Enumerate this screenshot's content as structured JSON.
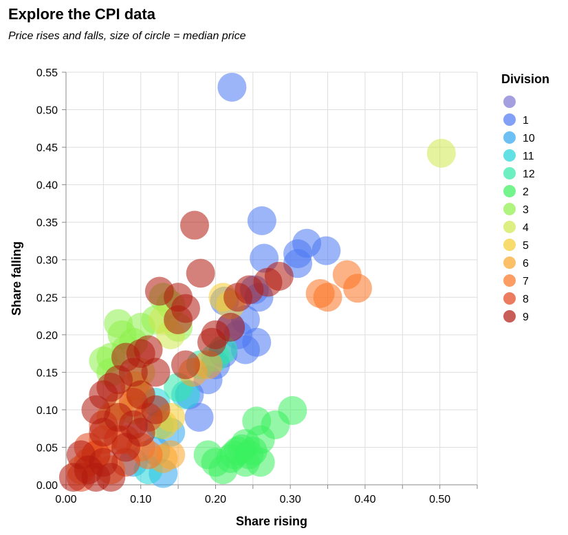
{
  "chart_data": {
    "type": "scatter",
    "title": "Explore the CPI data",
    "subtitle": "Price rises and falls, size of circle = median price",
    "xlabel": "Share rising",
    "ylabel": "Share falling",
    "xlim": [
      0,
      0.55
    ],
    "ylim": [
      0,
      0.55
    ],
    "xticks": [
      "0.00",
      "0.10",
      "0.20",
      "0.30",
      "0.40",
      "0.50"
    ],
    "yticks": [
      "0.00",
      "0.05",
      "0.10",
      "0.15",
      "0.20",
      "0.25",
      "0.30",
      "0.35",
      "0.40",
      "0.45",
      "0.50",
      "0.55"
    ],
    "grid": true,
    "legend": {
      "title": "Division",
      "position": "right",
      "entries": [
        {
          "label": "",
          "color": "#7e78d2"
        },
        {
          "label": "1",
          "color": "#4b77f2"
        },
        {
          "label": "10",
          "color": "#2fa5f0"
        },
        {
          "label": "11",
          "color": "#1fd3d8"
        },
        {
          "label": "12",
          "color": "#2fe8a8"
        },
        {
          "label": "2",
          "color": "#3af05e"
        },
        {
          "label": "3",
          "color": "#8ef04a"
        },
        {
          "label": "4",
          "color": "#cfe84e"
        },
        {
          "label": "5",
          "color": "#f5cc2f"
        },
        {
          "label": "6",
          "color": "#fba52a"
        },
        {
          "label": "7",
          "color": "#fb7321"
        },
        {
          "label": "8",
          "color": "#e2441b"
        },
        {
          "label": "9",
          "color": "#b1190f"
        }
      ]
    },
    "series": [
      {
        "name": "1",
        "color": "#4b77f2",
        "points": [
          [
            0.222,
            0.53
          ],
          [
            0.262,
            0.352
          ],
          [
            0.265,
            0.302
          ],
          [
            0.31,
            0.308
          ],
          [
            0.322,
            0.322
          ],
          [
            0.348,
            0.312
          ],
          [
            0.31,
            0.295
          ],
          [
            0.252,
            0.26
          ],
          [
            0.258,
            0.25
          ],
          [
            0.212,
            0.245
          ],
          [
            0.22,
            0.21
          ],
          [
            0.24,
            0.18
          ],
          [
            0.255,
            0.19
          ],
          [
            0.21,
            0.175
          ],
          [
            0.19,
            0.14
          ],
          [
            0.178,
            0.09
          ],
          [
            0.2,
            0.16
          ],
          [
            0.165,
            0.12
          ],
          [
            0.23,
            0.2
          ],
          [
            0.24,
            0.22
          ]
        ]
      },
      {
        "name": "10",
        "color": "#2fa5f0",
        "points": [
          [
            0.13,
            0.015
          ],
          [
            0.12,
            0.045
          ],
          [
            0.14,
            0.07
          ],
          [
            0.09,
            0.03
          ]
        ]
      },
      {
        "name": "11",
        "color": "#1fd3d8",
        "points": [
          [
            0.11,
            0.02
          ],
          [
            0.12,
            0.11
          ],
          [
            0.16,
            0.12
          ],
          [
            0.125,
            0.08
          ]
        ]
      },
      {
        "name": "12",
        "color": "#2fe8a8",
        "points": [
          [
            0.18,
            0.16
          ],
          [
            0.2,
            0.17
          ],
          [
            0.15,
            0.13
          ],
          [
            0.21,
            0.18
          ]
        ]
      },
      {
        "name": "2",
        "color": "#3af05e",
        "points": [
          [
            0.303,
            0.099
          ],
          [
            0.255,
            0.085
          ],
          [
            0.28,
            0.08
          ],
          [
            0.26,
            0.06
          ],
          [
            0.24,
            0.055
          ],
          [
            0.25,
            0.045
          ],
          [
            0.23,
            0.045
          ],
          [
            0.225,
            0.04
          ],
          [
            0.22,
            0.035
          ],
          [
            0.24,
            0.03
          ],
          [
            0.2,
            0.03
          ],
          [
            0.21,
            0.02
          ],
          [
            0.26,
            0.03
          ],
          [
            0.19,
            0.04
          ],
          [
            0.235,
            0.048
          ],
          [
            0.245,
            0.04
          ]
        ]
      },
      {
        "name": "3",
        "color": "#8ef04a",
        "points": [
          [
            0.07,
            0.215
          ],
          [
            0.075,
            0.2
          ],
          [
            0.06,
            0.17
          ],
          [
            0.05,
            0.165
          ],
          [
            0.1,
            0.21
          ],
          [
            0.09,
            0.19
          ],
          [
            0.14,
            0.24
          ],
          [
            0.13,
            0.25
          ],
          [
            0.12,
            0.22
          ],
          [
            0.08,
            0.18
          ],
          [
            0.06,
            0.15
          ],
          [
            0.15,
            0.21
          ]
        ]
      },
      {
        "name": "4",
        "color": "#cfe84e",
        "points": [
          [
            0.502,
            0.442
          ],
          [
            0.13,
            0.22
          ],
          [
            0.14,
            0.2
          ],
          [
            0.1,
            0.15
          ],
          [
            0.09,
            0.1
          ]
        ]
      },
      {
        "name": "5",
        "color": "#f5cc2f",
        "points": [
          [
            0.092,
            0.132
          ],
          [
            0.098,
            0.12
          ],
          [
            0.22,
            0.24
          ],
          [
            0.21,
            0.25
          ],
          [
            0.14,
            0.09
          ],
          [
            0.13,
            0.08
          ]
        ]
      },
      {
        "name": "6",
        "color": "#fba52a",
        "points": [
          [
            0.07,
            0.105
          ],
          [
            0.06,
            0.09
          ],
          [
            0.13,
            0.035
          ],
          [
            0.14,
            0.04
          ],
          [
            0.19,
            0.16
          ],
          [
            0.17,
            0.15
          ]
        ]
      },
      {
        "name": "7",
        "color": "#fb7321",
        "points": [
          [
            0.376,
            0.28
          ],
          [
            0.39,
            0.262
          ],
          [
            0.35,
            0.25
          ],
          [
            0.34,
            0.255
          ],
          [
            0.03,
            0.03
          ],
          [
            0.04,
            0.04
          ],
          [
            0.08,
            0.06
          ],
          [
            0.1,
            0.05
          ],
          [
            0.02,
            0.02
          ],
          [
            0.06,
            0.02
          ],
          [
            0.11,
            0.04
          ],
          [
            0.05,
            0.06
          ]
        ]
      },
      {
        "name": "8",
        "color": "#e2441b",
        "points": [
          [
            0.05,
            0.08
          ],
          [
            0.07,
            0.06
          ],
          [
            0.09,
            0.11
          ],
          [
            0.04,
            0.04
          ],
          [
            0.11,
            0.09
          ],
          [
            0.03,
            0.05
          ],
          [
            0.02,
            0.01
          ],
          [
            0.08,
            0.03
          ]
        ]
      },
      {
        "name": "9",
        "color": "#b1190f",
        "points": [
          [
            0.172,
            0.346
          ],
          [
            0.18,
            0.282
          ],
          [
            0.125,
            0.258
          ],
          [
            0.16,
            0.235
          ],
          [
            0.15,
            0.22
          ],
          [
            0.2,
            0.2
          ],
          [
            0.195,
            0.19
          ],
          [
            0.22,
            0.21
          ],
          [
            0.245,
            0.26
          ],
          [
            0.285,
            0.278
          ],
          [
            0.27,
            0.27
          ],
          [
            0.11,
            0.18
          ],
          [
            0.1,
            0.175
          ],
          [
            0.08,
            0.17
          ],
          [
            0.09,
            0.15
          ],
          [
            0.05,
            0.12
          ],
          [
            0.06,
            0.13
          ],
          [
            0.07,
            0.14
          ],
          [
            0.1,
            0.12
          ],
          [
            0.12,
            0.15
          ],
          [
            0.04,
            0.1
          ],
          [
            0.05,
            0.07
          ],
          [
            0.07,
            0.09
          ],
          [
            0.02,
            0.04
          ],
          [
            0.03,
            0.02
          ],
          [
            0.01,
            0.01
          ],
          [
            0.04,
            0.01
          ],
          [
            0.06,
            0.01
          ],
          [
            0.05,
            0.03
          ],
          [
            0.08,
            0.05
          ],
          [
            0.09,
            0.08
          ],
          [
            0.1,
            0.07
          ],
          [
            0.16,
            0.16
          ],
          [
            0.15,
            0.25
          ],
          [
            0.23,
            0.25
          ],
          [
            0.12,
            0.1
          ]
        ]
      }
    ]
  }
}
